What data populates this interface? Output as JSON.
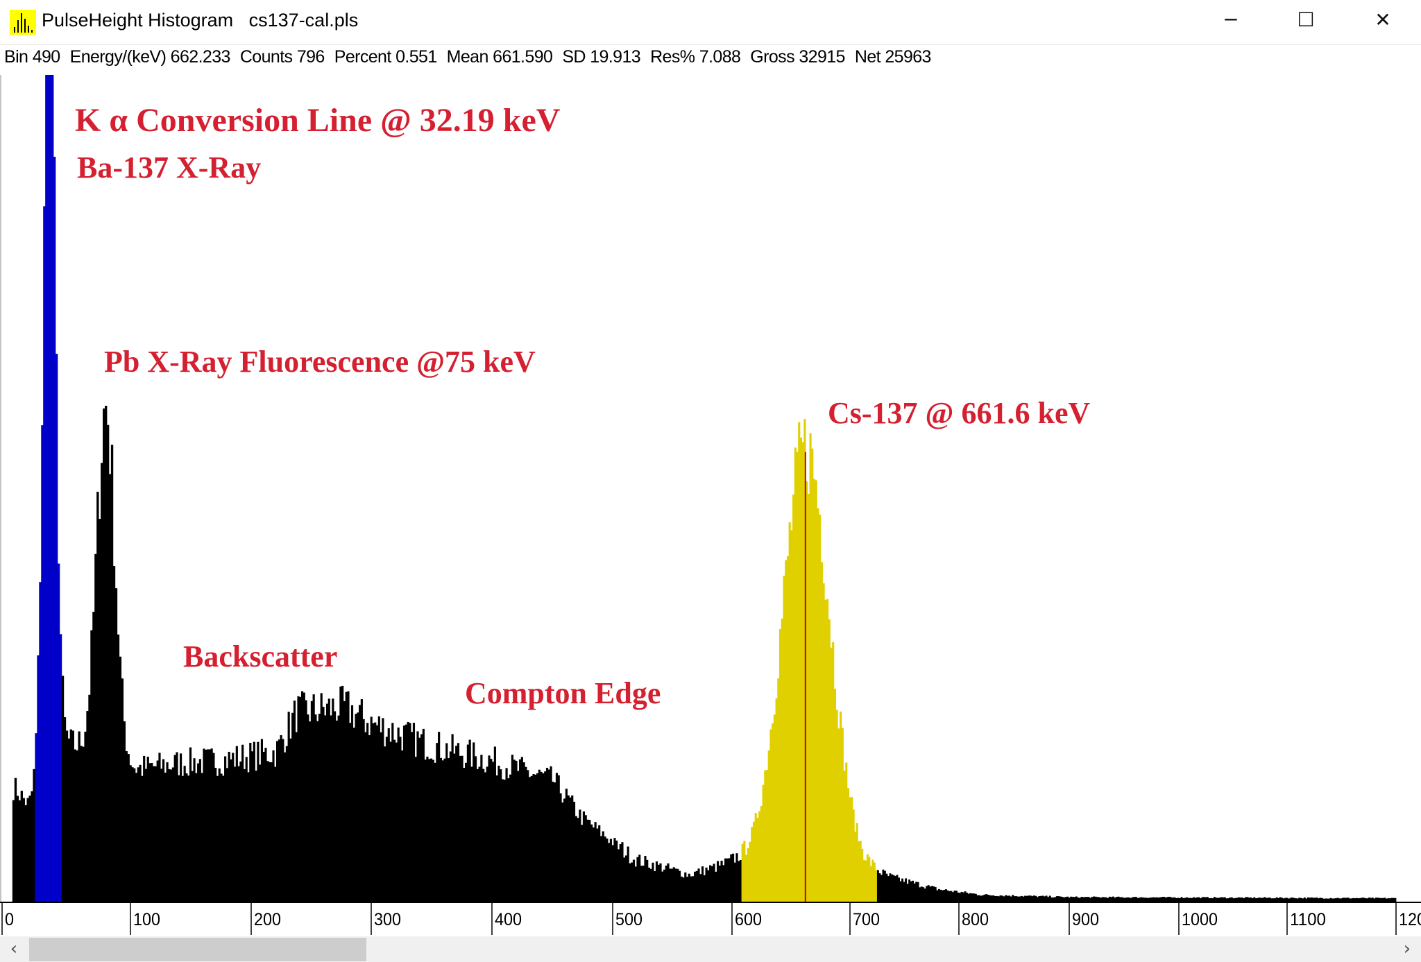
{
  "window": {
    "app_name": "PulseHeight Histogram",
    "file_name": "cs137-cal.pls",
    "icon": "histogram-icon",
    "controls": {
      "minimize": "─",
      "maximize": "☐",
      "close": "✕"
    }
  },
  "status": [
    {
      "label": "Bin",
      "value": "490"
    },
    {
      "label": "Energy/(keV)",
      "value": "662.233"
    },
    {
      "label": "Counts",
      "value": "796"
    },
    {
      "label": "Percent",
      "value": "0.551"
    },
    {
      "label": "Mean",
      "value": "661.590"
    },
    {
      "label": "SD",
      "value": "19.913"
    },
    {
      "label": "Res%",
      "value": "7.088"
    },
    {
      "label": "Gross",
      "value": "32915"
    },
    {
      "label": "Net",
      "value": "25963"
    }
  ],
  "annotations": {
    "kalpha": "K α  Conversion Line @ 32.19 keV",
    "ba137": "Ba-137 X-Ray",
    "pb": "Pb X-Ray Fluorescence @75 keV",
    "backscatter": "Backscatter",
    "compton": "Compton Edge",
    "cs137": "Cs-137 @ 661.6 keV"
  },
  "chart_data": {
    "type": "bar",
    "title": "",
    "xlabel": "",
    "ylabel": "",
    "x_unit": "keV",
    "xlim": [
      0,
      1200
    ],
    "x_ticks": [
      "0",
      "100",
      "200",
      "300",
      "400",
      "500",
      "600",
      "700",
      "800",
      "900",
      "1000",
      "1100",
      "1200"
    ],
    "ylim": [
      0,
      1460
    ],
    "grid": false,
    "continuum_envelope_keV_counts": [
      [
        0,
        210
      ],
      [
        10,
        200
      ],
      [
        20,
        170
      ],
      [
        50,
        280
      ],
      [
        70,
        265
      ],
      [
        104,
        235
      ],
      [
        140,
        245
      ],
      [
        175,
        250
      ],
      [
        220,
        265
      ],
      [
        237,
        335
      ],
      [
        277,
        345
      ],
      [
        300,
        315
      ],
      [
        344,
        280
      ],
      [
        398,
        250
      ],
      [
        450,
        215
      ],
      [
        473,
        150
      ],
      [
        518,
        75
      ],
      [
        563,
        48
      ],
      [
        601,
        70
      ],
      [
        720,
        55
      ],
      [
        733,
        45
      ],
      [
        780,
        22
      ],
      [
        820,
        12
      ],
      [
        900,
        8
      ],
      [
        1200,
        6
      ]
    ],
    "peaks": [
      {
        "energy": 36,
        "sigma": 4.5,
        "counts": 1430,
        "color": "#0000c8"
      },
      {
        "energy": 80,
        "sigma": 7,
        "counts": 620,
        "color": "#000000"
      },
      {
        "energy": 662,
        "sigma": 20,
        "counts": 740,
        "color": "#e0d000"
      }
    ],
    "regions_of_interest": [
      {
        "from": 25,
        "to": 45,
        "color": "#0000c8"
      },
      {
        "from": 607,
        "to": 724,
        "color": "#e0d000"
      }
    ],
    "default_bar_color": "#000000",
    "cursor": {
      "energy": 662.233,
      "color": "#c00000"
    }
  }
}
